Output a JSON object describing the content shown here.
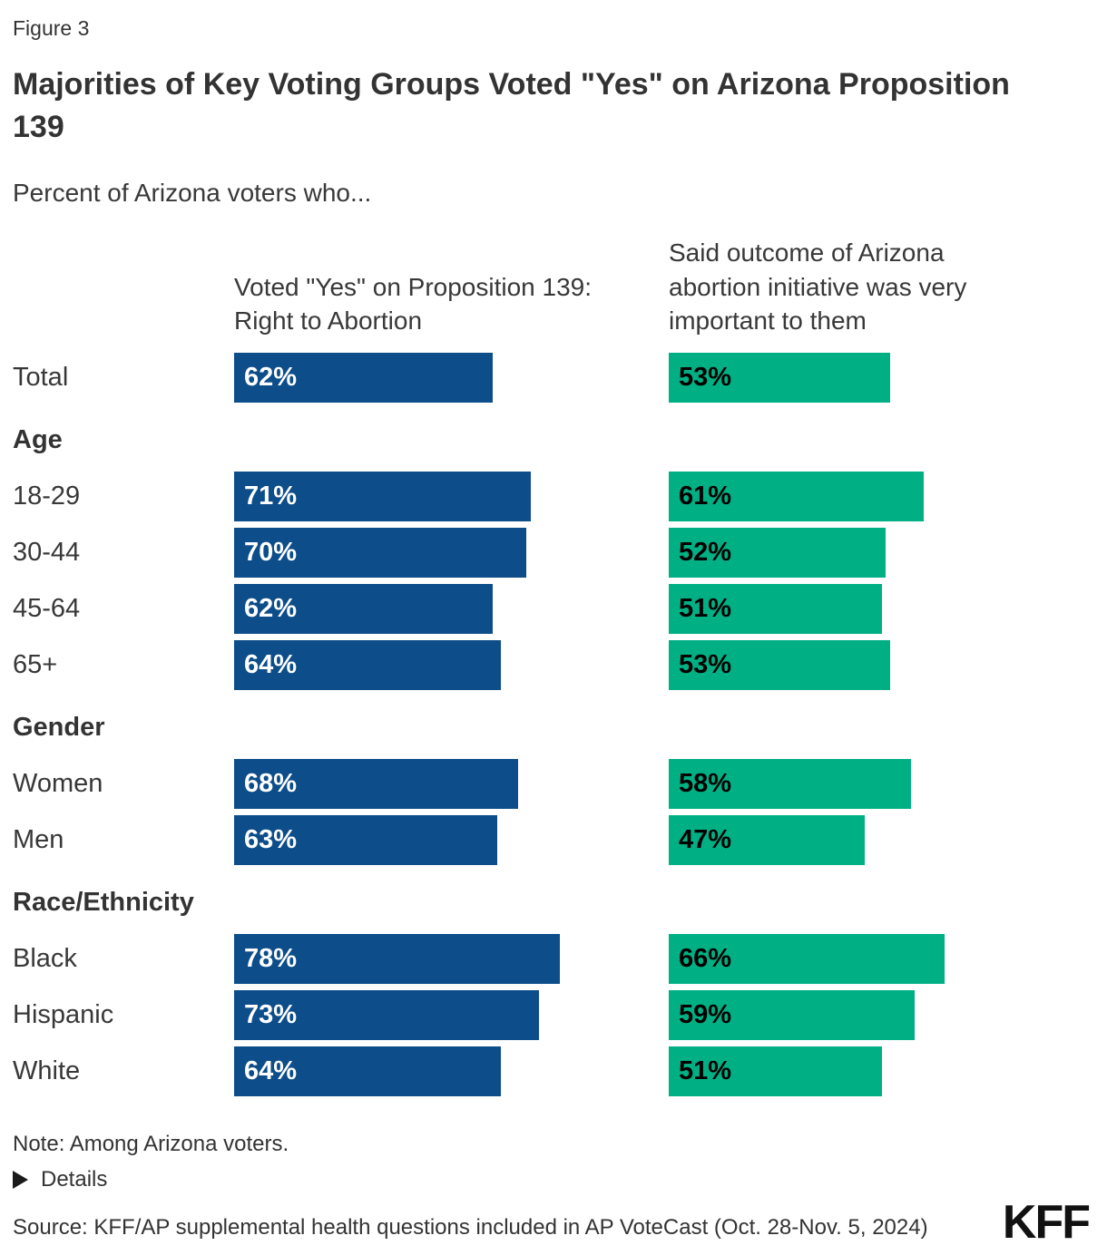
{
  "figure_label": "Figure 3",
  "title": "Majorities of Key Voting Groups Voted \"Yes\" on Arizona Proposition 139",
  "subtitle": "Percent of Arizona voters who...",
  "chart_data": {
    "type": "bar",
    "orientation": "horizontal",
    "value_suffix": "%",
    "xlim": [
      0,
      100
    ],
    "grid": false,
    "legend_position": "column-headers-top",
    "series": [
      {
        "id": "voted-yes-prop-139",
        "name": "Voted \"Yes\" on Proposition 139: Right to Abortion",
        "color": "#0C4D8A",
        "label_color": "#FFFFFF"
      },
      {
        "id": "outcome-very-important",
        "name": "Said outcome of Arizona abortion initiative was very important to them",
        "color": "#00B084",
        "label_color": "#000000"
      }
    ],
    "groups": [
      {
        "header": "",
        "rows": [
          {
            "label": "Total",
            "values": [
              62,
              53
            ]
          }
        ]
      },
      {
        "header": "Age",
        "rows": [
          {
            "label": "18-29",
            "values": [
              71,
              61
            ]
          },
          {
            "label": "30-44",
            "values": [
              70,
              52
            ]
          },
          {
            "label": "45-64",
            "values": [
              62,
              51
            ]
          },
          {
            "label": "65+",
            "values": [
              64,
              53
            ]
          }
        ]
      },
      {
        "header": "Gender",
        "rows": [
          {
            "label": "Women",
            "values": [
              68,
              58
            ]
          },
          {
            "label": "Men",
            "values": [
              63,
              47
            ]
          }
        ]
      },
      {
        "header": "Race/Ethnicity",
        "rows": [
          {
            "label": "Black",
            "values": [
              78,
              66
            ]
          },
          {
            "label": "Hispanic",
            "values": [
              73,
              59
            ]
          },
          {
            "label": "White",
            "values": [
              64,
              51
            ]
          }
        ]
      }
    ]
  },
  "footer": {
    "note": "Note: Among Arizona voters.",
    "details_label": "Details",
    "source": "Source: KFF/AP supplemental health questions included in AP VoteCast (Oct. 28-Nov. 5, 2024)",
    "logo_text": "KFF"
  }
}
